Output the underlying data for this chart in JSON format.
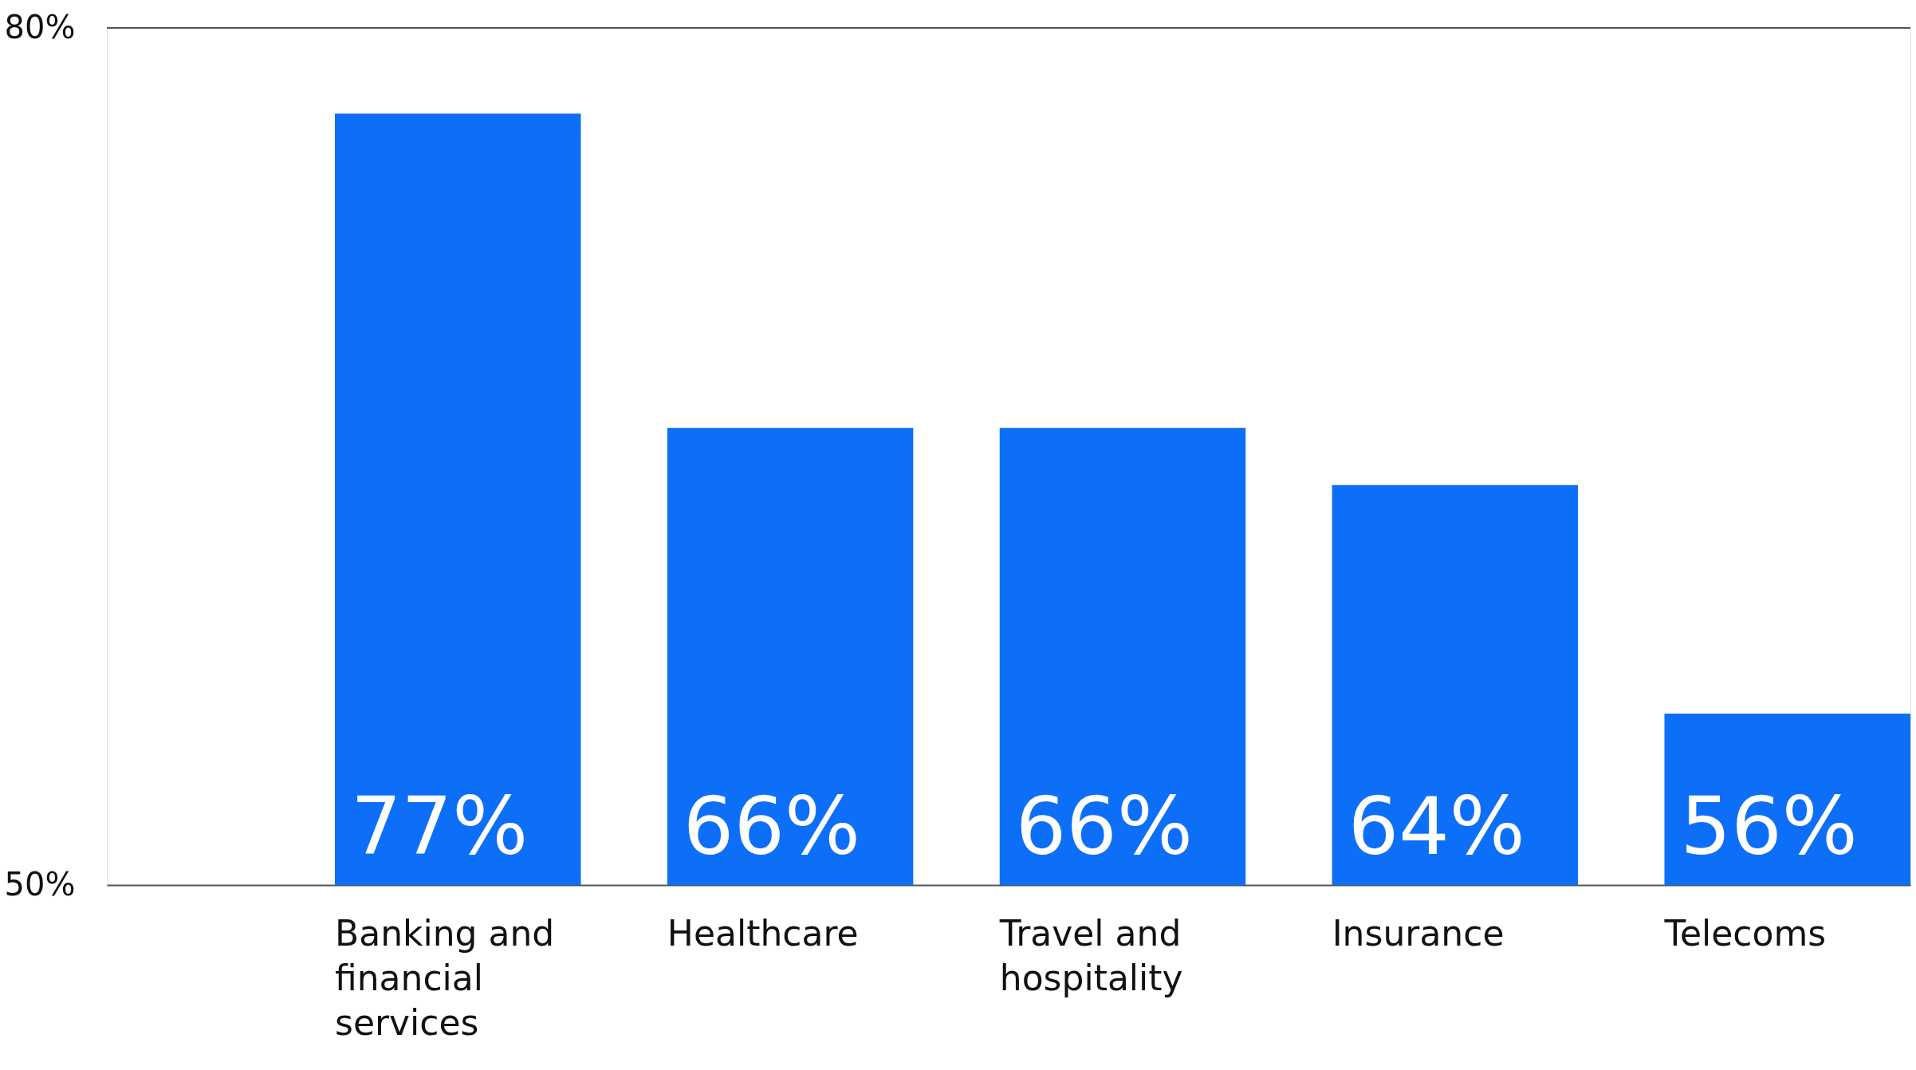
{
  "chart_data": {
    "type": "bar",
    "categories": [
      "Banking and financial services",
      "Healthcare",
      "Travel and hospitality",
      "Insurance",
      "Telecoms"
    ],
    "values": [
      77,
      66,
      66,
      64,
      56
    ],
    "value_labels": [
      "77%",
      "66%",
      "66%",
      "64%",
      "56%"
    ],
    "color": "#0d6ff8",
    "ylim": [
      50,
      80
    ],
    "yticks": [
      {
        "value": 50,
        "label": "50%"
      },
      {
        "value": 80,
        "label": "80%"
      }
    ],
    "ref_lines": [
      {
        "axis": "y",
        "value": 80,
        "color": "#555555"
      }
    ]
  }
}
